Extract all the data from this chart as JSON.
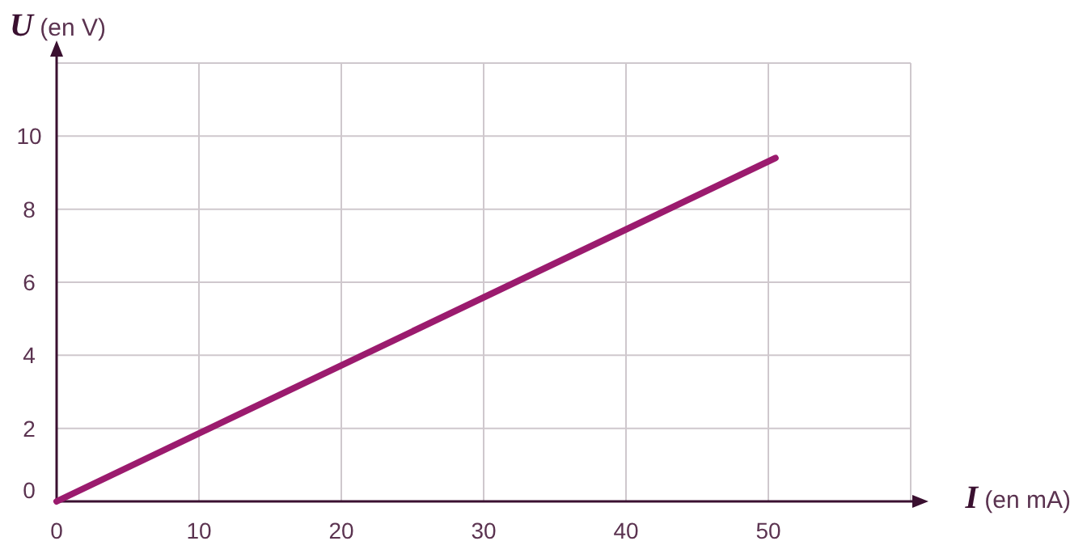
{
  "chart_data": {
    "type": "line",
    "xlabel": "I (en mA)",
    "ylabel": "U (en V)",
    "x": [
      0,
      50.5
    ],
    "series": [
      {
        "color": "#9b1b6e",
        "values": [
          0,
          9.4
        ]
      }
    ],
    "xlim": [
      0,
      60
    ],
    "ylim": [
      0,
      12
    ],
    "xticks": [
      0,
      10,
      20,
      30,
      40,
      50,
      {
        "value": 60,
        "label": null
      }
    ],
    "yticks": [
      0,
      2,
      4,
      6,
      8,
      10,
      {
        "value": 12,
        "label": null
      }
    ],
    "grid": true,
    "marker": "none",
    "line_style": "solid"
  }
}
